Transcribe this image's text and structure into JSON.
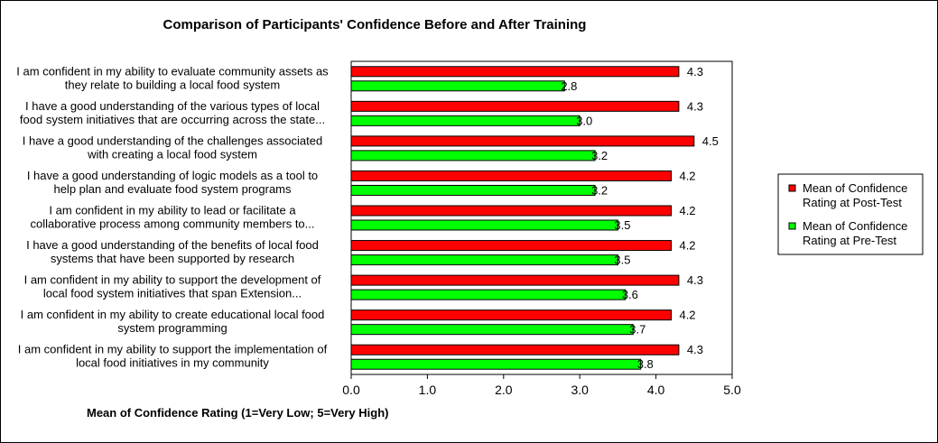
{
  "chart_data": {
    "type": "bar",
    "orientation": "horizontal",
    "title": "Comparison of Participants' Confidence Before and After  Training",
    "xlabel": "Mean of Confidence Rating (1=Very Low;  5=Very High)",
    "ylabel": "",
    "xlim": [
      0,
      5
    ],
    "xticks": [
      "0.0",
      "1.0",
      "2.0",
      "3.0",
      "4.0",
      "5.0"
    ],
    "grid": false,
    "legend_position": "right",
    "categories": [
      [
        "I am confident in my ability to evaluate community assets as",
        "they relate to building a local food system"
      ],
      [
        "I have a good understanding of the various types of local",
        "food system initiatives that are occurring across the state..."
      ],
      [
        "I have a good understanding of the challenges associated",
        "with creating a local food system"
      ],
      [
        "I have a good understanding of logic models as a tool to",
        "help plan and evaluate food system programs"
      ],
      [
        "I am confident in my ability to lead or facilitate a",
        "collaborative process among community members to..."
      ],
      [
        "I have a good understanding of the benefits of  local food",
        "systems that have been supported by research"
      ],
      [
        "I am confident in my ability to support the development of",
        "local food system initiatives that span Extension..."
      ],
      [
        "I am confident in my ability to create educational local food",
        "system programming"
      ],
      [
        "I am confident in my ability to support the implementation of",
        "local food initiatives in my community"
      ]
    ],
    "series": [
      {
        "name": "Mean of Confidence Rating at Post-Test",
        "color": "#ff0000",
        "values": [
          4.3,
          4.3,
          4.5,
          4.2,
          4.2,
          4.2,
          4.3,
          4.2,
          4.3
        ],
        "labels": [
          "4.3",
          "4.3",
          "4.5",
          "4.2",
          "4.2",
          "4.2",
          "4.3",
          "4.2",
          "4.3"
        ]
      },
      {
        "name": "Mean of Confidence Rating at Pre-Test",
        "color": "#00ff00",
        "values": [
          2.8,
          3.0,
          3.2,
          3.2,
          3.5,
          3.5,
          3.6,
          3.7,
          3.8
        ],
        "labels": [
          "2.8",
          "3.0",
          "3.2",
          "3.2",
          "3.5",
          "3.5",
          "3.6",
          "3.7",
          "3.8"
        ]
      }
    ],
    "legend_entries": [
      [
        "Mean of Confidence",
        "Rating at Post-Test"
      ],
      [
        "Mean of Confidence",
        "Rating at Pre-Test"
      ]
    ]
  }
}
